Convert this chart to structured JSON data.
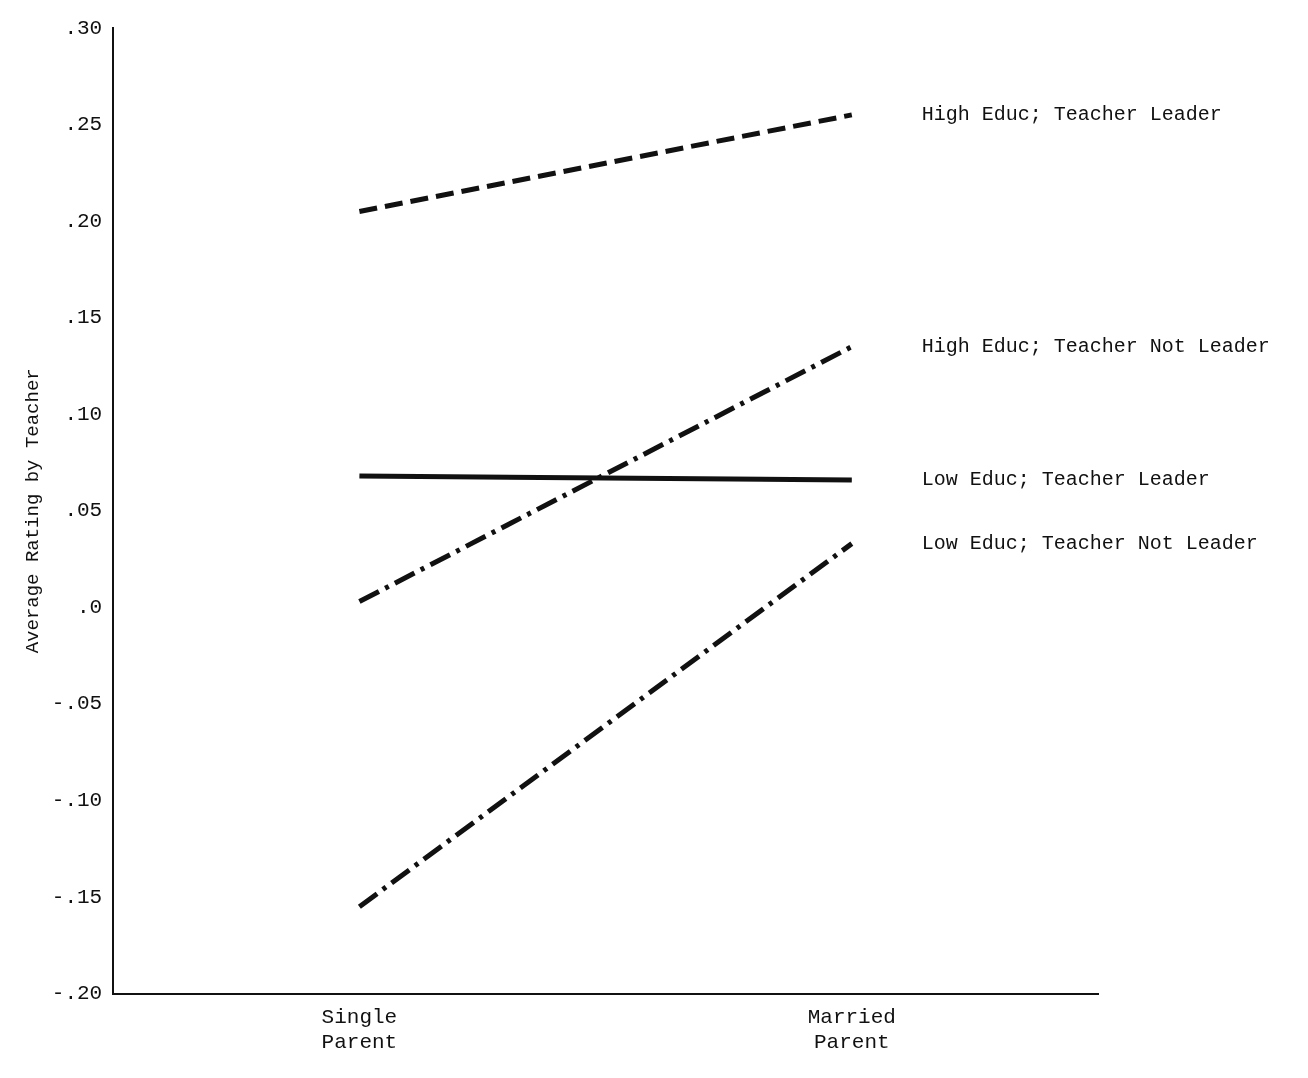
{
  "chart_data": {
    "type": "line",
    "ylabel": "Average Rating by Teacher",
    "categories": [
      "Single Parent",
      "Married Parent"
    ],
    "series": [
      {
        "name": "High Educ; Teacher Leader",
        "color": "#111111",
        "values": [
          0.205,
          0.255
        ],
        "line_style": "dashed"
      },
      {
        "name": "High Educ; Teacher Not Leader",
        "color": "#111111",
        "values": [
          0.003,
          0.135
        ],
        "line_style": "dashdot"
      },
      {
        "name": "Low Educ; Teacher Leader",
        "color": "#111111",
        "values": [
          0.068,
          0.066
        ],
        "line_style": "solid"
      },
      {
        "name": "Low Educ; Teacher Not Leader",
        "color": "#111111",
        "values": [
          -0.155,
          0.033
        ],
        "line_style": "dashdot"
      }
    ],
    "ylim": [
      -0.2,
      0.3
    ],
    "yticks": [
      {
        "value": 0.3,
        "label": ".30"
      },
      {
        "value": 0.25,
        "label": ".25"
      },
      {
        "value": 0.2,
        "label": ".20"
      },
      {
        "value": 0.15,
        "label": ".15"
      },
      {
        "value": 0.1,
        "label": ".10"
      },
      {
        "value": 0.05,
        "label": ".05"
      },
      {
        "value": 0,
        "label": ".0"
      },
      {
        "value": -0.05,
        "label": "-.05"
      },
      {
        "value": -0.1,
        "label": "-.10"
      },
      {
        "value": -0.15,
        "label": "-.15"
      },
      {
        "value": -0.2,
        "label": "-.20"
      }
    ],
    "grid": false,
    "legend": false,
    "marker": "none"
  }
}
